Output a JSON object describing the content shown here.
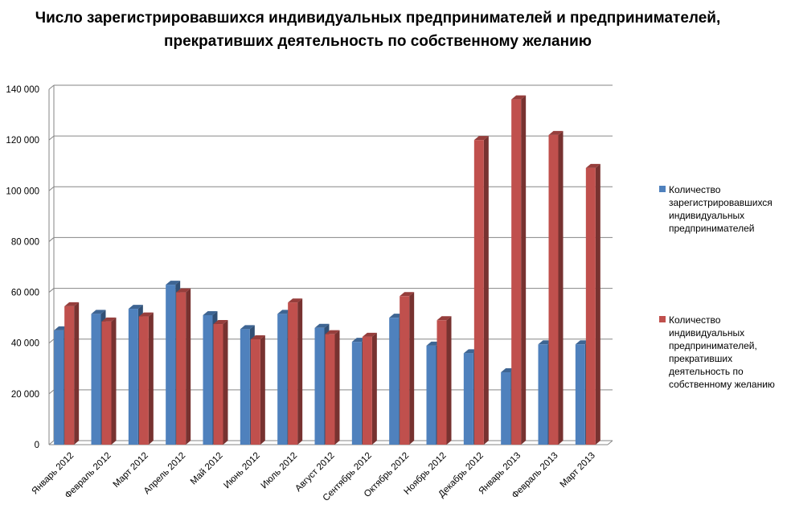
{
  "chart_data": {
    "type": "bar",
    "title": "Число зарегистрировавшихся индивидуальных предпринимателей и предпринимателей, прекративших деятельность по собственному желанию",
    "categories": [
      "Январь 2012",
      "Февраль 2012",
      "Март 2012",
      "Апрель 2012",
      "Май 2012",
      "Июнь 2012",
      "Июль 2012",
      "Август 2012",
      "Сентябрь 2012",
      "Октябрь 2012",
      "Ноябрь 2012",
      "Декабрь 2012",
      "Январь 2013",
      "Февраль 2013",
      "Март 2013"
    ],
    "series": [
      {
        "name": "Количество зарегистрировавшихся индивидуальных предпринимателей",
        "color": "#4F81BD",
        "values": [
          45000,
          51500,
          53500,
          63000,
          51000,
          45500,
          51500,
          46000,
          40500,
          50000,
          39000,
          36000,
          28500,
          39500,
          39500
        ]
      },
      {
        "name": "Количество индивидуальных предпринимателей, прекративших деятельность по собственному желанию",
        "color": "#C0504D",
        "values": [
          54500,
          48500,
          50500,
          60000,
          47500,
          41500,
          56000,
          43500,
          42500,
          58500,
          49000,
          120000,
          136000,
          122000,
          109000
        ]
      }
    ],
    "ylim": [
      0,
      140000
    ],
    "yticks": [
      "0",
      "20 000",
      "40 000",
      "60 000",
      "80 000",
      "100 000",
      "120 000",
      "140 000"
    ],
    "ytick_values": [
      0,
      20000,
      40000,
      60000,
      80000,
      100000,
      120000,
      140000
    ],
    "grid": true,
    "legend_position": "right",
    "style": "3d-clustered-column"
  }
}
